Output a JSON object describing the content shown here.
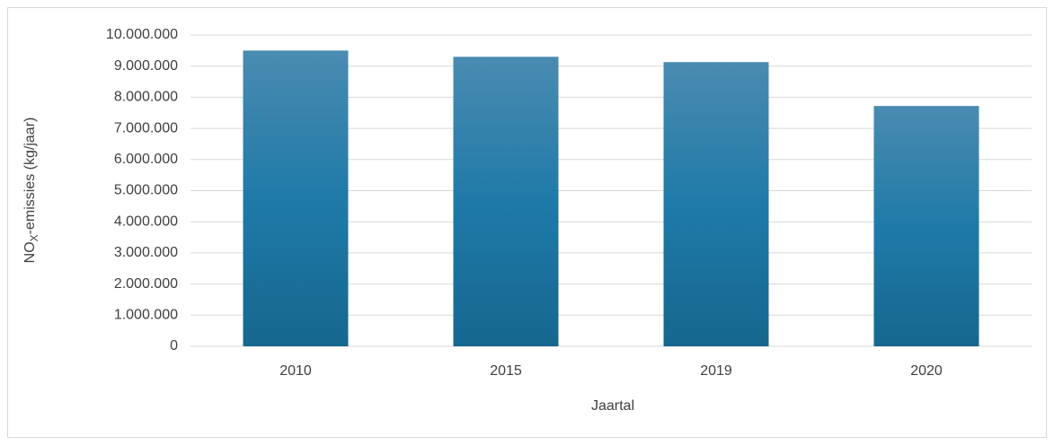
{
  "chart_data": {
    "type": "bar",
    "y_label": {
      "base": "NO",
      "sub": "X",
      "rest": "-emissies (kg/jaar)"
    },
    "x_label": "Jaartal",
    "categories": [
      "2010",
      "2015",
      "2019",
      "2020"
    ],
    "values": [
      9500000,
      9300000,
      9130000,
      7720000
    ],
    "color": "#1a6f9c",
    "ylim": [
      0,
      10000000
    ],
    "yticks": [
      0,
      {
        "value": 1000000,
        "label": "1.000.000"
      },
      {
        "value": 2000000,
        "label": "2.000.000"
      },
      {
        "value": 3000000,
        "label": "3.000.000"
      },
      {
        "value": 4000000,
        "label": "4.000.000"
      },
      {
        "value": 5000000,
        "label": "5.000.000"
      },
      {
        "value": 6000000,
        "label": "6.000.000"
      },
      {
        "value": 7000000,
        "label": "7.000.000"
      },
      {
        "value": 8000000,
        "label": "8.000.000"
      },
      {
        "value": 9000000,
        "label": "9.000.000"
      },
      {
        "value": 10000000,
        "label": "10.000.000"
      }
    ],
    "grid": true
  }
}
